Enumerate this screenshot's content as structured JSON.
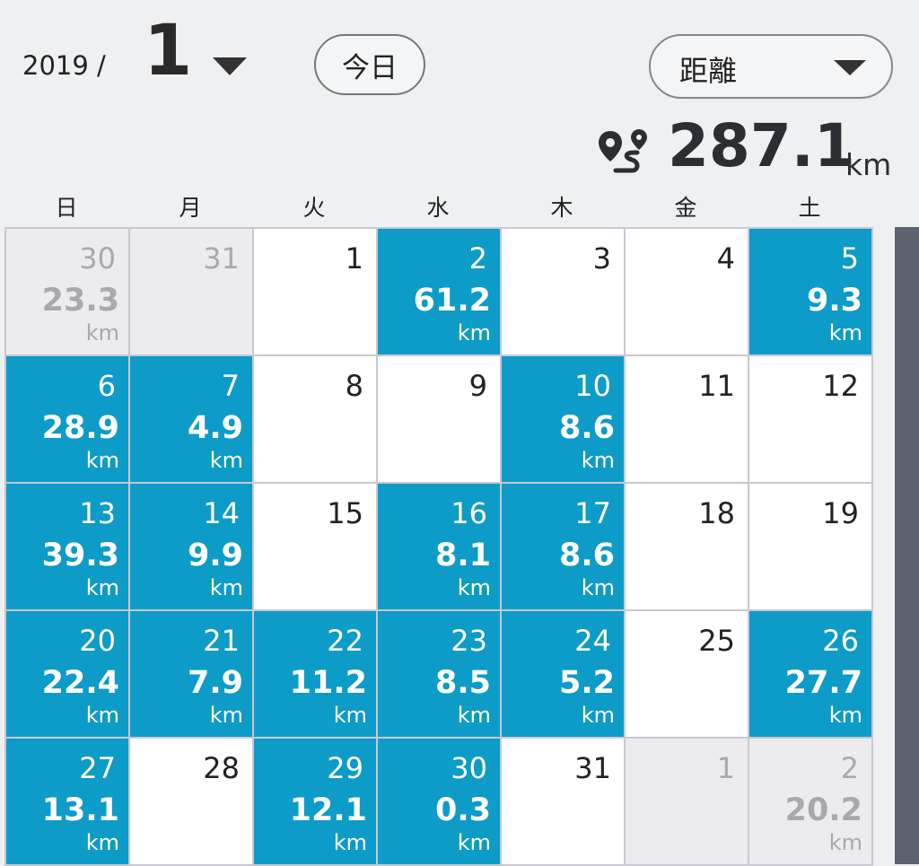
{
  "header": {
    "year": "2019 /",
    "month": "1",
    "today_label": "今日",
    "mode_label": "距離"
  },
  "summary": {
    "total_value": "287.1",
    "total_unit": "km",
    "icon": "route-icon"
  },
  "weekdays": [
    "日",
    "月",
    "火",
    "水",
    "木",
    "金",
    "土"
  ],
  "colors": {
    "active": "#0d9bc8",
    "muted_text": "#a9a9ad",
    "scrollbar": "#5e6170"
  },
  "calendar": [
    {
      "day": "30",
      "dist": "23.3",
      "unit": "km",
      "state": "muted"
    },
    {
      "day": "31",
      "dist": "",
      "unit": "",
      "state": "muted"
    },
    {
      "day": "1",
      "dist": "",
      "unit": "",
      "state": "normal"
    },
    {
      "day": "2",
      "dist": "61.2",
      "unit": "km",
      "state": "active"
    },
    {
      "day": "3",
      "dist": "",
      "unit": "",
      "state": "normal"
    },
    {
      "day": "4",
      "dist": "",
      "unit": "",
      "state": "normal"
    },
    {
      "day": "5",
      "dist": "9.3",
      "unit": "km",
      "state": "active"
    },
    {
      "day": "6",
      "dist": "28.9",
      "unit": "km",
      "state": "active"
    },
    {
      "day": "7",
      "dist": "4.9",
      "unit": "km",
      "state": "active"
    },
    {
      "day": "8",
      "dist": "",
      "unit": "",
      "state": "normal"
    },
    {
      "day": "9",
      "dist": "",
      "unit": "",
      "state": "normal"
    },
    {
      "day": "10",
      "dist": "8.6",
      "unit": "km",
      "state": "active"
    },
    {
      "day": "11",
      "dist": "",
      "unit": "",
      "state": "normal"
    },
    {
      "day": "12",
      "dist": "",
      "unit": "",
      "state": "normal"
    },
    {
      "day": "13",
      "dist": "39.3",
      "unit": "km",
      "state": "active"
    },
    {
      "day": "14",
      "dist": "9.9",
      "unit": "km",
      "state": "active"
    },
    {
      "day": "15",
      "dist": "",
      "unit": "",
      "state": "normal"
    },
    {
      "day": "16",
      "dist": "8.1",
      "unit": "km",
      "state": "active"
    },
    {
      "day": "17",
      "dist": "8.6",
      "unit": "km",
      "state": "active"
    },
    {
      "day": "18",
      "dist": "",
      "unit": "",
      "state": "normal"
    },
    {
      "day": "19",
      "dist": "",
      "unit": "",
      "state": "normal"
    },
    {
      "day": "20",
      "dist": "22.4",
      "unit": "km",
      "state": "active"
    },
    {
      "day": "21",
      "dist": "7.9",
      "unit": "km",
      "state": "active"
    },
    {
      "day": "22",
      "dist": "11.2",
      "unit": "km",
      "state": "active"
    },
    {
      "day": "23",
      "dist": "8.5",
      "unit": "km",
      "state": "active"
    },
    {
      "day": "24",
      "dist": "5.2",
      "unit": "km",
      "state": "active"
    },
    {
      "day": "25",
      "dist": "",
      "unit": "",
      "state": "normal"
    },
    {
      "day": "26",
      "dist": "27.7",
      "unit": "km",
      "state": "active"
    },
    {
      "day": "27",
      "dist": "13.1",
      "unit": "km",
      "state": "active"
    },
    {
      "day": "28",
      "dist": "",
      "unit": "",
      "state": "normal"
    },
    {
      "day": "29",
      "dist": "12.1",
      "unit": "km",
      "state": "active"
    },
    {
      "day": "30",
      "dist": "0.3",
      "unit": "km",
      "state": "active"
    },
    {
      "day": "31",
      "dist": "",
      "unit": "",
      "state": "normal"
    },
    {
      "day": "1",
      "dist": "",
      "unit": "",
      "state": "muted"
    },
    {
      "day": "2",
      "dist": "20.2",
      "unit": "km",
      "state": "muted"
    }
  ]
}
